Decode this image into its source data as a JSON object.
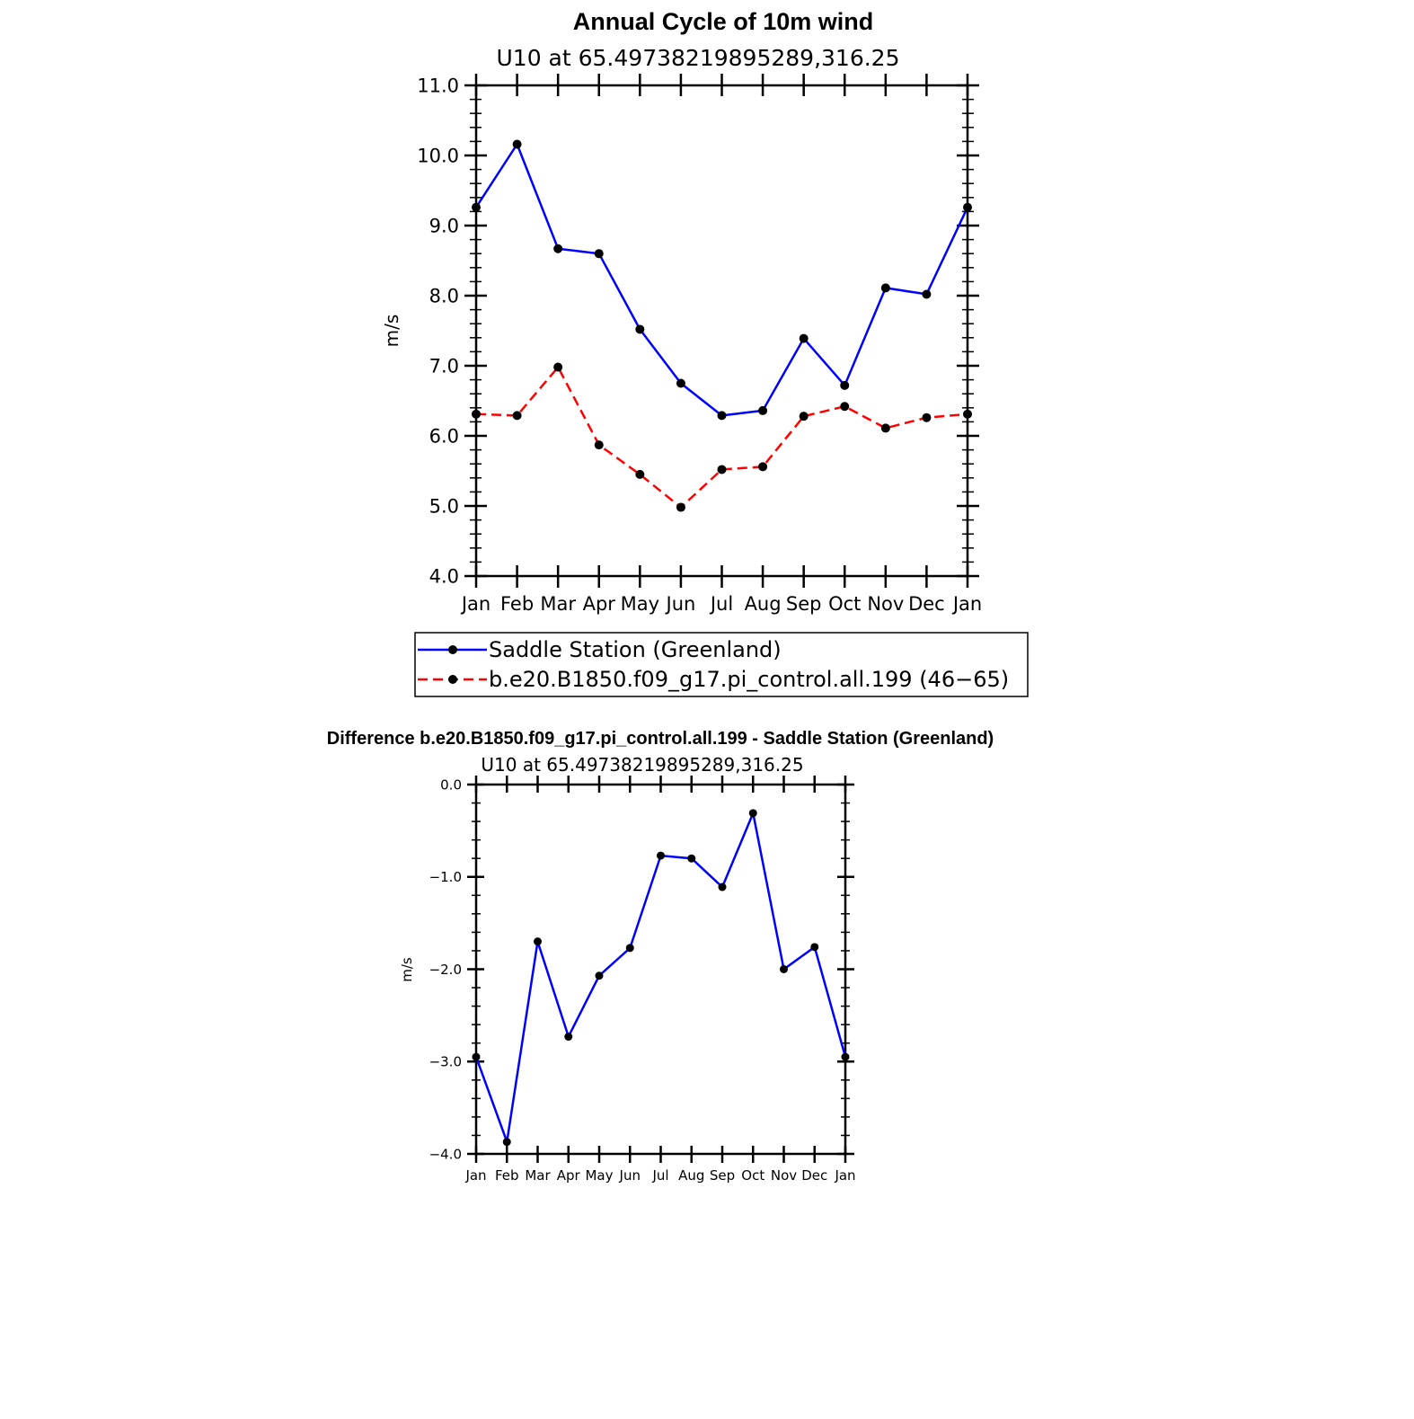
{
  "chart_data": [
    {
      "type": "line",
      "title": "Annual Cycle of 10m wind",
      "subtitle": "U10  at  65.49738219895289,316.25",
      "xlabel": "",
      "ylabel": "m/s",
      "categories": [
        "Jan",
        "Feb",
        "Mar",
        "Apr",
        "May",
        "Jun",
        "Jul",
        "Aug",
        "Sep",
        "Oct",
        "Nov",
        "Dec",
        "Jan"
      ],
      "ylim": [
        4.0,
        11.0
      ],
      "yticks": [
        "4.0",
        "5.0",
        "6.0",
        "7.0",
        "8.0",
        "9.0",
        "10.0",
        "11.0"
      ],
      "grid": false,
      "legend_position": "bottom",
      "series": [
        {
          "name": "Saddle Station (Greenland)",
          "color": "#0000ff",
          "style": "solid",
          "values": [
            9.26,
            10.16,
            8.67,
            8.6,
            7.52,
            6.75,
            6.29,
            6.36,
            7.39,
            6.72,
            8.11,
            8.02,
            9.26
          ]
        },
        {
          "name": "b.e20.B1850.f09_g17.pi_control.all.199 (46−65)",
          "color": "#ff0000",
          "style": "dashed",
          "values": [
            6.31,
            6.29,
            6.98,
            5.87,
            5.45,
            4.98,
            5.52,
            5.56,
            6.28,
            6.42,
            6.11,
            6.26,
            6.31
          ]
        }
      ]
    },
    {
      "type": "line",
      "title": "Difference b.e20.B1850.f09_g17.pi_control.all.199 - Saddle Station (Greenland)",
      "subtitle": "U10  at  65.49738219895289,316.25",
      "xlabel": "",
      "ylabel": "m/s",
      "categories": [
        "Jan",
        "Feb",
        "Mar",
        "Apr",
        "May",
        "Jun",
        "Jul",
        "Aug",
        "Sep",
        "Oct",
        "Nov",
        "Dec",
        "Jan"
      ],
      "ylim": [
        -4.0,
        0.0
      ],
      "yticks": [
        "−4.0",
        "−3.0",
        "−2.0",
        "−1.0",
        "0.0"
      ],
      "grid": false,
      "series": [
        {
          "color": "#0000ff",
          "style": "solid",
          "values": [
            -2.95,
            -3.87,
            -1.7,
            -2.73,
            -2.07,
            -1.77,
            -0.77,
            -0.8,
            -1.11,
            -0.31,
            -2.0,
            -1.76,
            -2.95
          ]
        }
      ]
    }
  ]
}
